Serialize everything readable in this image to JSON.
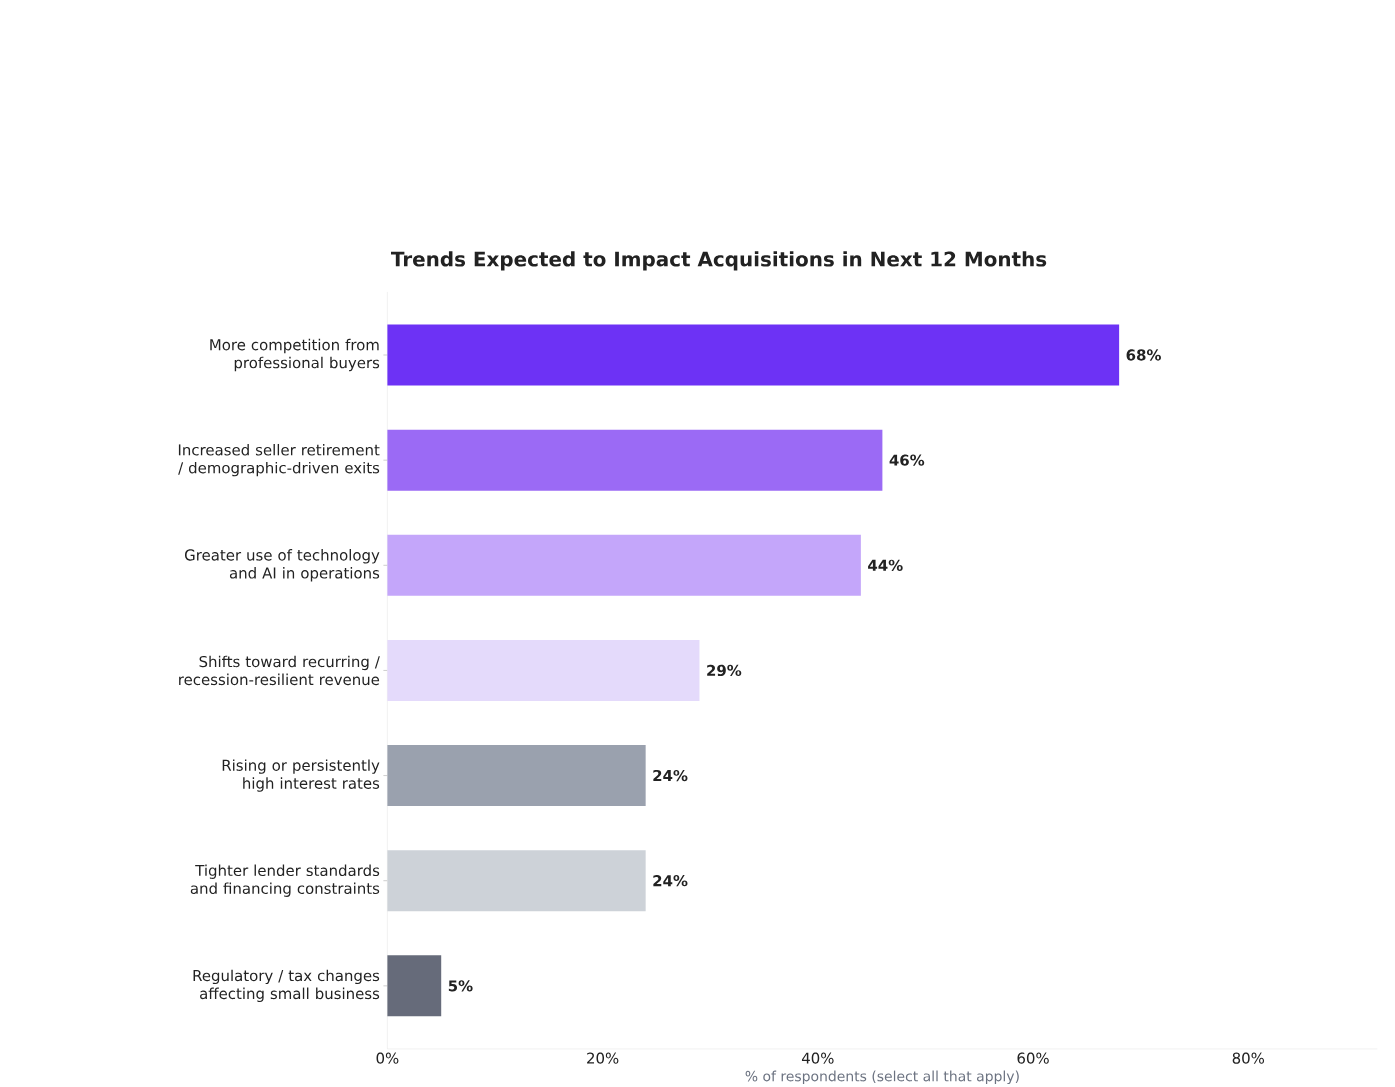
{
  "chart_data": {
    "type": "bar",
    "orientation": "horizontal",
    "title": "Trends Expected to Impact Acquisitions in Next 12 Months",
    "xlabel": "% of respondents (select all that apply)",
    "categories": [
      "More competition from professional buyers",
      "Increased seller retirement / demographic-driven exits",
      "Greater use of technology and AI in operations",
      "Shifts toward recurring / recession-resilient revenue",
      "Rising or persistently high interest rates",
      "Tighter lender standards and financing constraints",
      "Regulatory / tax changes affecting small business"
    ],
    "values": [
      68,
      46,
      44,
      29,
      24,
      24,
      5
    ],
    "value_labels": [
      "68%",
      "46%",
      "44%",
      "29%",
      "24%",
      "24%",
      "5%"
    ],
    "colors": [
      "#6d32f5",
      "#9b6af5",
      "#c4a6fa",
      "#e4dafb",
      "#9aa1ae",
      "#cdd2d8",
      "#666b7a"
    ],
    "xlim": [
      0,
      92
    ],
    "xticks": [
      {
        "value": 0,
        "label": "0%"
      },
      {
        "value": 20,
        "label": "20%"
      },
      {
        "value": 40,
        "label": "40%"
      },
      {
        "value": 60,
        "label": "60%"
      },
      {
        "value": 80,
        "label": "80%"
      }
    ]
  }
}
